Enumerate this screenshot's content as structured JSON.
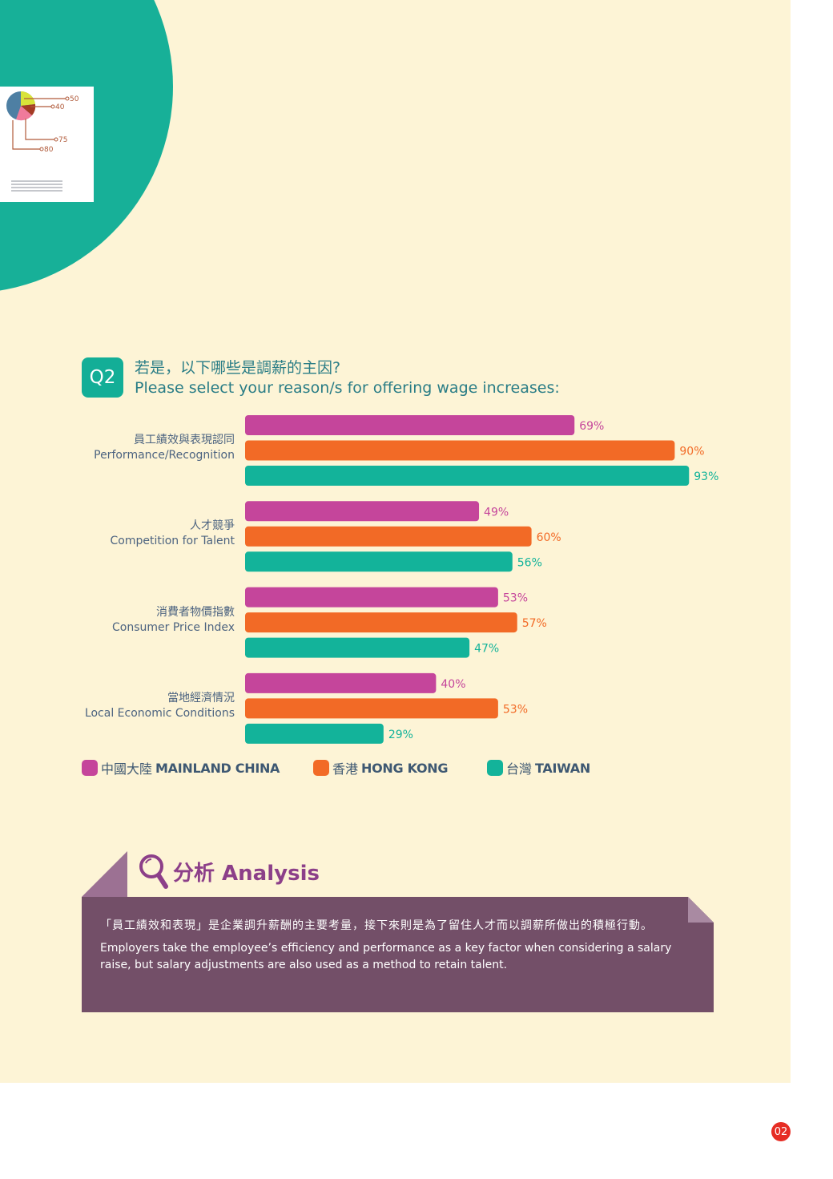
{
  "question": {
    "badge": "Q2",
    "text_zh": "若是，以下哪些是調薪的主因?",
    "text_en": "Please select your reason/s for offering wage increases:"
  },
  "colors": {
    "mainland_china": "#c5459b",
    "hong_kong": "#f26a26",
    "taiwan": "#13b39a",
    "analysis_bg": "#734f68",
    "page_bg": "#fdf4d6",
    "teal_circle": "#17b098"
  },
  "decor": {
    "card_labels": [
      "50",
      "40",
      "75",
      "80"
    ]
  },
  "chart_data": {
    "type": "bar",
    "orientation": "horizontal",
    "categories": [
      {
        "zh": "員工績效與表現認同",
        "en": "Performance/Recognition"
      },
      {
        "zh": "人才競爭",
        "en": "Competition for Talent"
      },
      {
        "zh": "消費者物價指數",
        "en": "Consumer Price Index"
      },
      {
        "zh": "當地經濟情況",
        "en": "Local Economic Conditions"
      }
    ],
    "series": [
      {
        "name_zh": "中國大陸",
        "name": "MAINLAND CHINA",
        "values": [
          69,
          49,
          53,
          40
        ],
        "labels": [
          "69%",
          "49%",
          "53%",
          "40%"
        ]
      },
      {
        "name_zh": "香港",
        "name": "HONG KONG",
        "values": [
          90,
          60,
          57,
          53
        ],
        "labels": [
          "90%",
          "60%",
          "57%",
          "53%"
        ]
      },
      {
        "name_zh": "台灣",
        "name": "TAIWAN",
        "values": [
          93,
          56,
          47,
          29
        ],
        "labels": [
          "93%",
          "56%",
          "47%",
          "29%"
        ]
      }
    ],
    "xlim": [
      0,
      100
    ],
    "grid": false,
    "legend_position": "bottom"
  },
  "analysis": {
    "title": "分析 Analysis",
    "text_zh": "「員工績效和表現」是企業調升薪酬的主要考量，接下來則是為了留住人才而以調薪所做出的積極行動。",
    "text_en": "Employers take the employee’s efficiency and performance as a key factor when considering a salary raise, but salary adjustments are also used as a method to retain talent."
  },
  "page_number": "02"
}
